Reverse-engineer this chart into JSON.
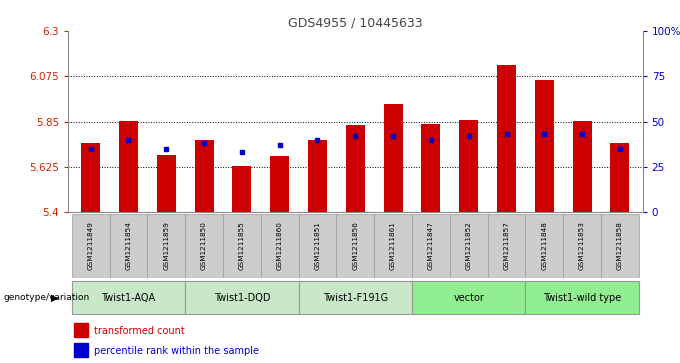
{
  "title": "GDS4955 / 10445633",
  "samples": [
    "GSM1211849",
    "GSM1211854",
    "GSM1211859",
    "GSM1211850",
    "GSM1211855",
    "GSM1211860",
    "GSM1211851",
    "GSM1211856",
    "GSM1211861",
    "GSM1211847",
    "GSM1211852",
    "GSM1211857",
    "GSM1211848",
    "GSM1211853",
    "GSM1211858"
  ],
  "bar_values": [
    5.745,
    5.855,
    5.685,
    5.758,
    5.628,
    5.68,
    5.758,
    5.835,
    5.935,
    5.838,
    5.858,
    6.13,
    6.055,
    5.855,
    5.745
  ],
  "percentile_values": [
    35,
    40,
    35,
    38,
    33,
    37,
    40,
    42,
    42,
    40,
    42,
    43,
    43,
    43,
    35
  ],
  "ymin": 5.4,
  "ymax": 6.3,
  "yticks": [
    5.4,
    5.625,
    5.85,
    6.075,
    6.3
  ],
  "ytick_labels": [
    "5.4",
    "5.625",
    "5.85",
    "6.075",
    "6.3"
  ],
  "right_yticks": [
    0,
    25,
    50,
    75,
    100
  ],
  "right_ytick_labels": [
    "0",
    "25",
    "50",
    "75",
    "100%"
  ],
  "bar_color": "#cc0000",
  "percentile_color": "#0000cc",
  "grid_color": "#000000",
  "left_tick_color": "#cc2200",
  "right_tick_color": "#0000cc",
  "groups": [
    {
      "label": "Twist1-AQA",
      "start": 0,
      "end": 3,
      "color": "#c8e8c8"
    },
    {
      "label": "Twist1-DQD",
      "start": 3,
      "end": 6,
      "color": "#c8e8c8"
    },
    {
      "label": "Twist1-F191G",
      "start": 6,
      "end": 9,
      "color": "#c8e8c8"
    },
    {
      "label": "vector",
      "start": 9,
      "end": 12,
      "color": "#90ee90"
    },
    {
      "label": "Twist1-wild type",
      "start": 12,
      "end": 15,
      "color": "#90ee90"
    }
  ],
  "sample_box_color": "#cccccc",
  "legend_red_label": "transformed count",
  "legend_blue_label": "percentile rank within the sample",
  "genotype_label": "genotype/variation"
}
